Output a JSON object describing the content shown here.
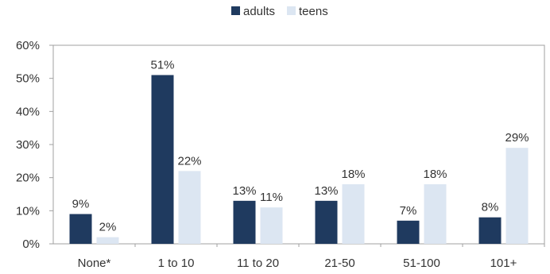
{
  "chart_data": {
    "type": "bar",
    "categories": [
      "None*",
      "1 to 10",
      "11 to 20",
      "21-50",
      "51-100",
      "101+"
    ],
    "series": [
      {
        "name": "adults",
        "values": [
          9,
          51,
          13,
          13,
          7,
          8
        ],
        "color": "#1f3a5f"
      },
      {
        "name": "teens",
        "values": [
          2,
          22,
          11,
          18,
          18,
          29
        ],
        "color": "#dce6f2"
      }
    ],
    "data_labels": {
      "adults": [
        "9%",
        "51%",
        "13%",
        "13%",
        "7%",
        "8%"
      ],
      "teens": [
        "2%",
        "22%",
        "11%",
        "18%",
        "18%",
        "29%"
      ]
    },
    "yticks": [
      "0%",
      "10%",
      "20%",
      "30%",
      "40%",
      "50%",
      "60%"
    ],
    "ylim": [
      0,
      60
    ],
    "title": "",
    "xlabel": "",
    "ylabel": "",
    "grid": false,
    "legend_position": "top-center"
  }
}
